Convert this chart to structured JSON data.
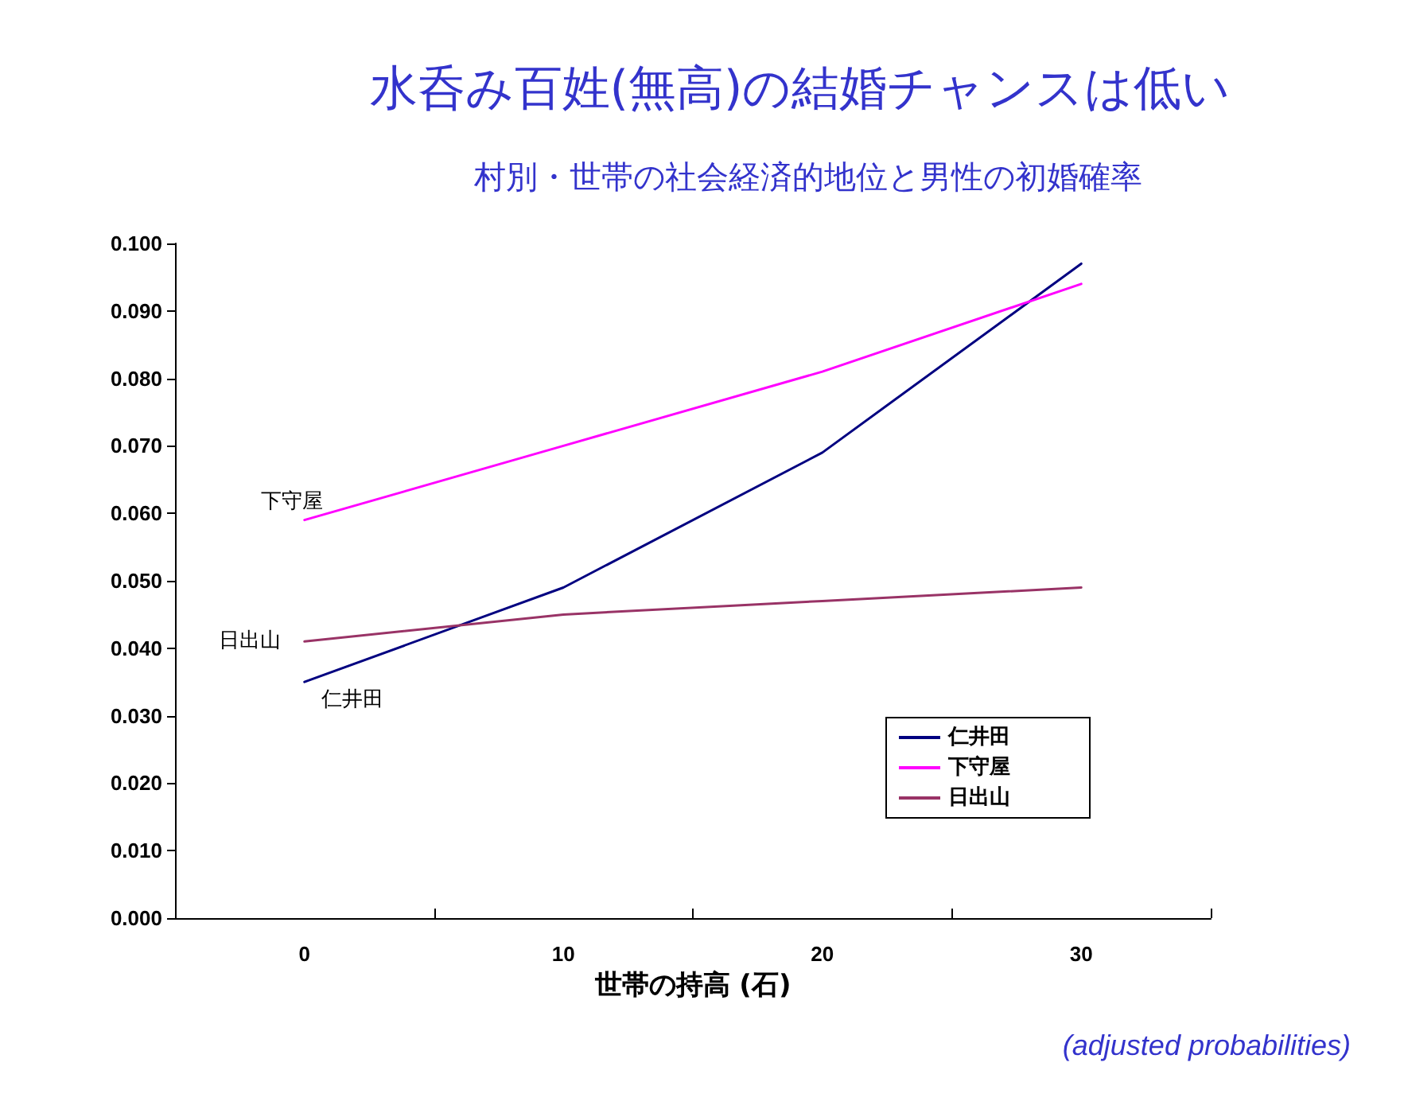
{
  "chart_data": {
    "type": "line",
    "title": "水呑み百姓(無高)の結婚チャンスは低い",
    "subtitle": "村別・世帯の社会経済的地位と男性の初婚確率",
    "xlabel": "世帯の持高 (石)",
    "categories": [
      "0",
      "10",
      "20",
      "30"
    ],
    "series": [
      {
        "name": "仁井田",
        "color": "#000080",
        "values": [
          0.035,
          0.049,
          0.069,
          0.097
        ]
      },
      {
        "name": "下守屋",
        "color": "#ff00ff",
        "values": [
          0.059,
          0.07,
          0.081,
          0.094
        ]
      },
      {
        "name": "日出山",
        "color": "#993366",
        "values": [
          0.041,
          0.045,
          0.047,
          0.049
        ]
      }
    ],
    "ylim": [
      0,
      0.1
    ],
    "yticks": [
      {
        "value": 0,
        "label": "0.000"
      },
      {
        "value": 0.01,
        "label": "0.010"
      },
      {
        "value": 0.02,
        "label": "0.020"
      },
      {
        "value": 0.03,
        "label": "0.030"
      },
      {
        "value": 0.04,
        "label": "0.040"
      },
      {
        "value": 0.05,
        "label": "0.050"
      },
      {
        "value": 0.06,
        "label": "0.060"
      },
      {
        "value": 0.07,
        "label": "0.070"
      },
      {
        "value": 0.08,
        "label": "0.080"
      },
      {
        "value": 0.09,
        "label": "0.090"
      },
      {
        "value": 0.1,
        "label": "0.100"
      }
    ],
    "grid": false,
    "legend": "bottom right",
    "marker": "none",
    "line_style": "solid",
    "annotations": [
      "(adjusted probabilities)"
    ]
  }
}
